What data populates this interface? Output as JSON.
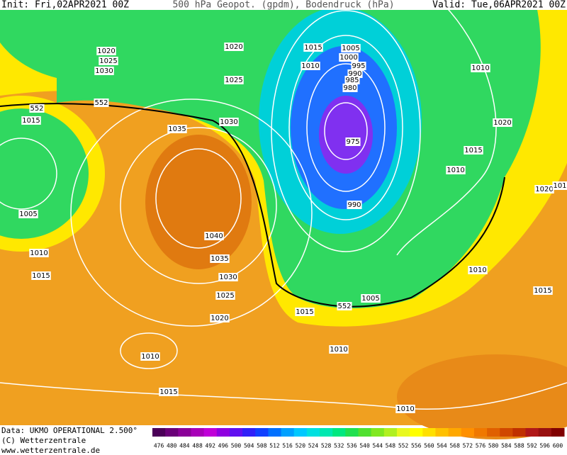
{
  "header": {
    "init": "Init: Fri,02APR2021 00Z",
    "title": "500 hPa Geopot. (gpdm), Bodendruck (hPa)",
    "valid": "Valid: Tue,06APR2021 00Z"
  },
  "contour_labels": [
    "1020",
    "1025",
    "1030",
    "552",
    "552",
    "1015",
    "1035",
    "1030",
    "1020",
    "1025",
    "1015",
    "1010",
    "1005",
    "1000",
    "995",
    "990",
    "985",
    "980",
    "975",
    "990",
    "1010",
    "1020",
    "1015",
    "1010",
    "1020",
    "101",
    "1005",
    "1010",
    "1040",
    "1035",
    "1030",
    "1025",
    "1020",
    "1015",
    "1015",
    "552",
    "1005",
    "1010",
    "1015",
    "1010",
    "1010",
    "1015",
    "1010"
  ],
  "footer": {
    "data": "Data: UKMO OPERATIONAL 2.500°",
    "copyright": "(C) Wetterzentrale",
    "url": "www.wetterzentrale.de"
  },
  "colorbar": {
    "values": [
      476,
      480,
      484,
      488,
      492,
      496,
      500,
      504,
      508,
      512,
      516,
      520,
      524,
      528,
      532,
      536,
      540,
      544,
      548,
      552,
      556,
      560,
      564,
      568,
      572,
      576,
      580,
      584,
      588,
      592,
      596,
      600
    ],
    "colors": [
      "#4b0058",
      "#6a0078",
      "#8a0098",
      "#a800b8",
      "#c000d8",
      "#9000e0",
      "#6010f0",
      "#3020f8",
      "#1040ff",
      "#0070ff",
      "#00a0ff",
      "#00c8ff",
      "#00e0e0",
      "#00e8b0",
      "#00e880",
      "#20e050",
      "#50e030",
      "#80e820",
      "#b0f020",
      "#e8f820",
      "#ffff00",
      "#ffe000",
      "#ffc000",
      "#ffa800",
      "#ff9000",
      "#f07800",
      "#e06000",
      "#d04800",
      "#c03000",
      "#b01818",
      "#981010",
      "#800000"
    ]
  }
}
